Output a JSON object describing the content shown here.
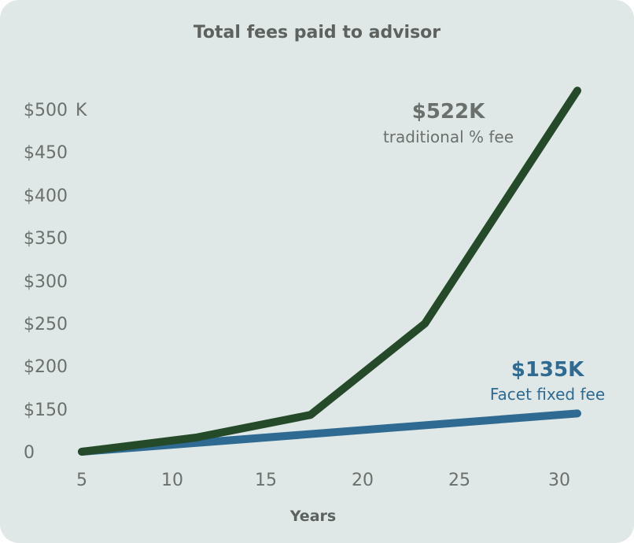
{
  "chart_data": {
    "type": "line",
    "title": "Total fees paid to advisor",
    "xlabel": "Years",
    "ylabel": "",
    "x_ticks": [
      5,
      10,
      15,
      20,
      25,
      30
    ],
    "y_ticks": [
      0,
      150,
      200,
      250,
      300,
      350,
      400,
      450,
      500
    ],
    "y_tick_labels": [
      "0",
      "$150",
      "$200",
      "$250",
      "$300",
      "$350",
      "$400",
      "$450",
      "$500"
    ],
    "y_top_suffix": "K",
    "ylim": [
      0,
      522
    ],
    "xlim": [
      5,
      31
    ],
    "grid": false,
    "legend": "none",
    "series": [
      {
        "color": "#254a2a",
        "x": [
          5,
          11,
          17,
          23,
          31
        ],
        "y": [
          0,
          50,
          130,
          250,
          522
        ],
        "end_value_label": "$522K",
        "end_text_label": "traditional % fee"
      },
      {
        "color": "#2e6a92",
        "x": [
          5,
          31
        ],
        "y": [
          0,
          135
        ],
        "end_value_label": "$135K",
        "end_text_label": "Facet fixed fee"
      }
    ]
  }
}
